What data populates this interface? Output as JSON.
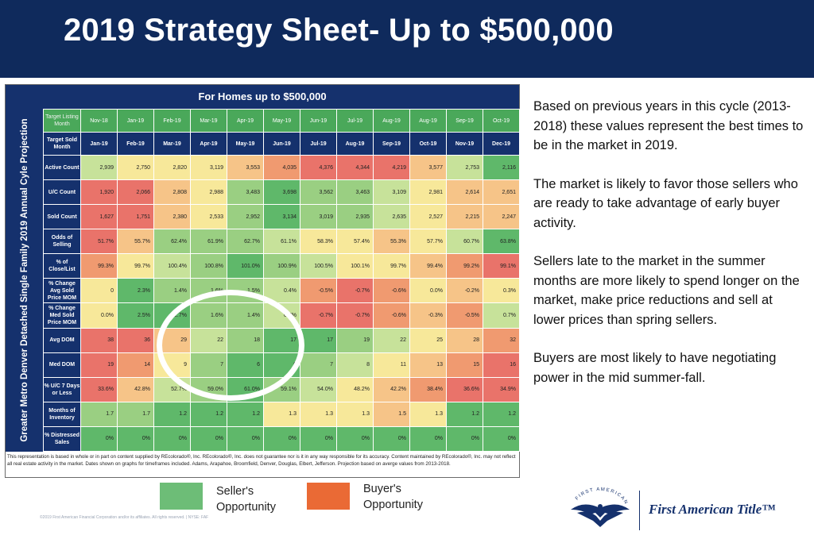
{
  "header": {
    "title": "2019 Strategy Sheet- Up to $500,000"
  },
  "sheet": {
    "title": "For Homes up to $500,000",
    "side_label": "Greater Metro Denver Detached Single Family 2019 Annual Cyle Projection",
    "listing_label": "Target Listing Month",
    "sold_label": "Target Sold Month",
    "listing_months": [
      "Nov-18",
      "Jan-19",
      "Feb-19",
      "Mar-19",
      "Apr-19",
      "May-19",
      "Jun-19",
      "Jul-19",
      "Aug-19",
      "Aug-19",
      "Sep-19",
      "Oct-19"
    ],
    "sold_months": [
      "Jan-19",
      "Feb-19",
      "Mar-19",
      "Apr-19",
      "May-19",
      "Jun-19",
      "Jul-19",
      "Aug-19",
      "Sep-19",
      "Oct-19",
      "Nov-19",
      "Dec-19"
    ],
    "rows": [
      {
        "label": "Active Count",
        "values": [
          "2,939",
          "2,750",
          "2,820",
          "3,119",
          "3,553",
          "4,035",
          "4,376",
          "4,344",
          "4,219",
          "3,577",
          "2,753",
          "2,116"
        ],
        "colors": [
          "green-l",
          "yellow",
          "yellow",
          "yellow",
          "orange-l",
          "orange",
          "red",
          "red",
          "red",
          "orange-l",
          "green-l",
          "green-d"
        ]
      },
      {
        "label": "U/C Count",
        "values": [
          "1,920",
          "2,066",
          "2,808",
          "2,988",
          "3,483",
          "3,698",
          "3,562",
          "3,463",
          "3,109",
          "2,981",
          "2,614",
          "2,651"
        ],
        "colors": [
          "red",
          "red",
          "orange-l",
          "yellow",
          "green",
          "green-d",
          "green",
          "green",
          "green-l",
          "yellow",
          "orange-l",
          "orange-l"
        ]
      },
      {
        "label": "Sold Count",
        "values": [
          "1,627",
          "1,751",
          "2,380",
          "2,533",
          "2,952",
          "3,134",
          "3,019",
          "2,935",
          "2,635",
          "2,527",
          "2,215",
          "2,247"
        ],
        "colors": [
          "red",
          "red",
          "orange-l",
          "yellow",
          "green",
          "green-d",
          "green",
          "green",
          "green-l",
          "yellow",
          "orange-l",
          "orange-l"
        ]
      },
      {
        "label": "Odds of Selling",
        "values": [
          "51.7%",
          "55.7%",
          "62.4%",
          "61.9%",
          "62.7%",
          "61.1%",
          "58.3%",
          "57.4%",
          "55.3%",
          "57.7%",
          "60.7%",
          "63.8%"
        ],
        "colors": [
          "red",
          "orange-l",
          "green",
          "green",
          "green",
          "green-l",
          "yellow",
          "yellow",
          "orange-l",
          "yellow",
          "green-l",
          "green-d"
        ]
      },
      {
        "label": "% of Close/List",
        "values": [
          "99.3%",
          "99.7%",
          "100.4%",
          "100.8%",
          "101.0%",
          "100.9%",
          "100.5%",
          "100.1%",
          "99.7%",
          "99.4%",
          "99.2%",
          "99.1%"
        ],
        "colors": [
          "orange",
          "yellow",
          "green-l",
          "green",
          "green-d",
          "green",
          "green-l",
          "yellow",
          "yellow",
          "orange-l",
          "orange",
          "red"
        ]
      },
      {
        "label": "% Change Avg Sold Price MOM",
        "values": [
          "0",
          "2.3%",
          "1.4%",
          "1.6%",
          "1.5%",
          "0.4%",
          "-0.5%",
          "-0.7%",
          "-0.6%",
          "0.0%",
          "-0.2%",
          "0.3%"
        ],
        "colors": [
          "yellow",
          "green-d",
          "green",
          "green",
          "green",
          "green-l",
          "orange",
          "red",
          "orange",
          "yellow",
          "orange-l",
          "yellow"
        ]
      },
      {
        "label": "% Change Med Sold Price MOM",
        "values": [
          "0.0%",
          "2.5%",
          "2.7%",
          "1.6%",
          "1.4%",
          "0.7%",
          "-0.7%",
          "-0.7%",
          "-0.6%",
          "-0.3%",
          "-0.5%",
          "0.7%"
        ],
        "colors": [
          "yellow",
          "green-d",
          "green-d",
          "green",
          "green",
          "green-l",
          "red",
          "red",
          "orange",
          "orange-l",
          "orange",
          "green-l"
        ]
      },
      {
        "label": "Avg DOM",
        "values": [
          "38",
          "36",
          "29",
          "22",
          "18",
          "17",
          "17",
          "19",
          "22",
          "25",
          "28",
          "32"
        ],
        "colors": [
          "red",
          "red",
          "orange-l",
          "green-l",
          "green",
          "green-d",
          "green-d",
          "green",
          "green-l",
          "yellow",
          "orange-l",
          "orange"
        ]
      },
      {
        "label": "Med DOM",
        "values": [
          "19",
          "14",
          "9",
          "7",
          "6",
          "6",
          "7",
          "8",
          "11",
          "13",
          "15",
          "16"
        ],
        "colors": [
          "red",
          "orange",
          "yellow",
          "green",
          "green-d",
          "green-d",
          "green",
          "green-l",
          "yellow",
          "orange-l",
          "orange",
          "red"
        ]
      },
      {
        "label": "% U/C 7 Days or Less",
        "values": [
          "33.6%",
          "42.8%",
          "52.7%",
          "59.0%",
          "61.0%",
          "59.1%",
          "54.0%",
          "48.2%",
          "42.2%",
          "38.4%",
          "36.6%",
          "34.9%"
        ],
        "colors": [
          "red",
          "orange-l",
          "green-l",
          "green",
          "green-d",
          "green",
          "green-l",
          "yellow",
          "orange-l",
          "orange",
          "red",
          "red"
        ]
      },
      {
        "label": "Months of Inventory",
        "values": [
          "1.7",
          "1.7",
          "1.2",
          "1.2",
          "1.2",
          "1.3",
          "1.3",
          "1.3",
          "1.5",
          "1.3",
          "1.2",
          "1.2"
        ],
        "colors": [
          "green",
          "green",
          "green-d",
          "green-d",
          "green-d",
          "yellow",
          "yellow",
          "yellow",
          "orange-l",
          "yellow",
          "green-d",
          "green-d"
        ]
      },
      {
        "label": "% Distressed Sales",
        "values": [
          "0%",
          "0%",
          "0%",
          "0%",
          "0%",
          "0%",
          "0%",
          "0%",
          "0%",
          "0%",
          "0%",
          "0%"
        ],
        "colors": [
          "green-d",
          "green-d",
          "green-d",
          "green-d",
          "green-d",
          "green-d",
          "green-d",
          "green-d",
          "green-d",
          "green-d",
          "green-d",
          "green-d"
        ]
      }
    ],
    "disclaimer": "This representation is based in whole or in part on content supplied by REcolorado®, Inc. REcolorado®, Inc. does not guarantee nor is it in any way responsible for its accuracy. Content maintained by REcolorado®, Inc. may not reflect all real estate activity in the market. Dates shown on graphs for timeframes included. Adams, Arapahoe, Broomfield, Denver, Douglas, Elbert, Jefferson. Projection based on averge values from 2013-2018."
  },
  "notes": [
    "Based on previous years in this cycle (2013-2018) these values represent the best times to be in the market in 2019.",
    "The market is likely to favor those sellers who are ready to take advantage of early buyer activity.",
    "Sellers late to the market in the summer months are more likely to spend longer on the market, make price reductions and sell at lower prices than spring sellers.",
    "Buyers are most likely to have negotiating power in the mid summer-fall."
  ],
  "legend": {
    "seller": {
      "label": "Seller's Opportunity",
      "color": "#6dbd77"
    },
    "buyer": {
      "label": "Buyer's Opportunity",
      "color": "#ea6a35"
    }
  },
  "footer": {
    "copyright": "©2019 First American Financial Corporation and/or its affiliates. All rights reserved. | NYSE: FAF",
    "brand": "First American Title™",
    "emblem_text": "FIRST AMERICAN"
  }
}
